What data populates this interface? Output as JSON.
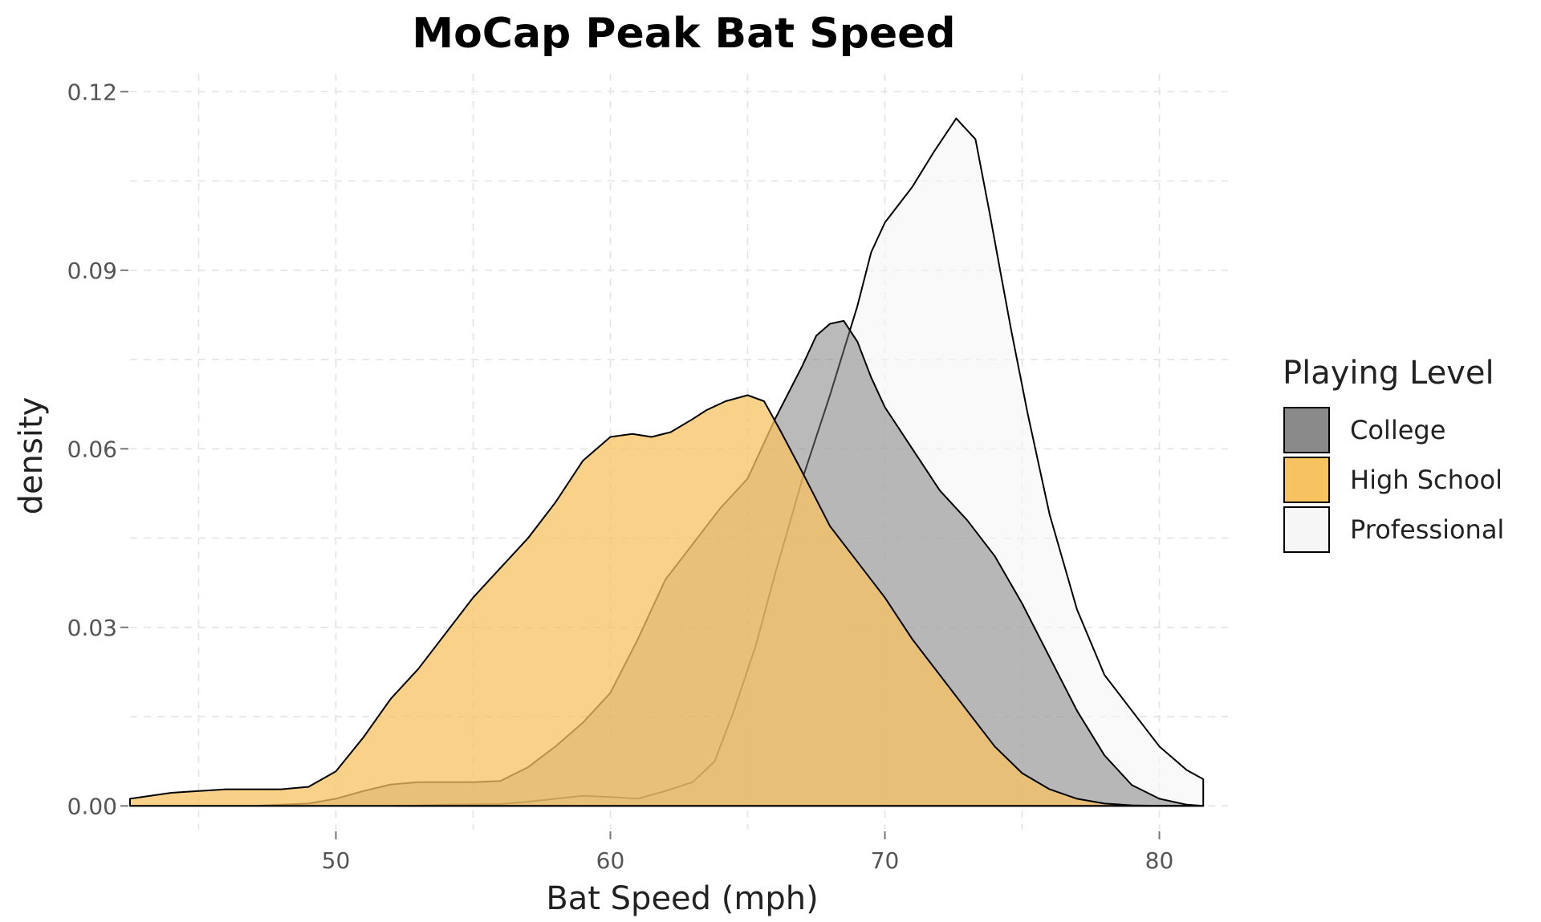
{
  "chart_data": {
    "type": "area",
    "subtype": "density",
    "title": "MoCap Peak Bat Speed",
    "xlabel": "Bat Speed (mph)",
    "ylabel": "density",
    "xlim": [
      42.5,
      82.5
    ],
    "ylim": [
      -0.004,
      0.123
    ],
    "xticks": [
      50,
      60,
      70,
      80
    ],
    "xtick_labels": [
      "50",
      "60",
      "70",
      "80"
    ],
    "yticks": [
      0.0,
      0.03,
      0.06,
      0.09,
      0.12
    ],
    "ytick_labels": [
      "0.00",
      "0.03",
      "0.06",
      "0.09",
      "0.12"
    ],
    "grid": true,
    "legend": {
      "title": "Playing Level",
      "placement": "right",
      "entries": [
        "College",
        "High School",
        "Professional"
      ]
    },
    "series": [
      {
        "name": "Professional",
        "color": "#f7f5f7",
        "opacity": 0.6,
        "x": [
          52.2,
          54,
          56,
          57,
          58,
          59,
          60,
          61,
          62,
          63,
          63.8,
          64.5,
          65.3,
          66,
          67,
          68,
          69,
          69.5,
          70,
          71,
          71.8,
          72.6,
          73.3,
          73.8,
          74.2,
          74.6,
          75.2,
          76,
          77,
          78,
          79,
          80,
          81,
          81.6
        ],
        "y": [
          0,
          0.0002,
          0.0003,
          0.0007,
          0.0012,
          0.0017,
          0.0015,
          0.0012,
          0.0025,
          0.004,
          0.0075,
          0.016,
          0.027,
          0.039,
          0.055,
          0.069,
          0.084,
          0.093,
          0.098,
          0.104,
          0.11,
          0.1155,
          0.112,
          0.1,
          0.09,
          0.08,
          0.066,
          0.049,
          0.033,
          0.022,
          0.016,
          0.01,
          0.006,
          0.0045
        ]
      },
      {
        "name": "College",
        "color": "#757575",
        "opacity": 0.5,
        "x": [
          42.5,
          47,
          49,
          50,
          51,
          52,
          53,
          54,
          55,
          56,
          57,
          58,
          59,
          60,
          61,
          62,
          63,
          64,
          65,
          66,
          67,
          67.5,
          68,
          68.5,
          69,
          69.5,
          70,
          71,
          72,
          73,
          74,
          75,
          76,
          77,
          78,
          79,
          80,
          81,
          81.6
        ],
        "y": [
          0,
          0,
          0.0004,
          0.0012,
          0.0025,
          0.0036,
          0.004,
          0.004,
          0.004,
          0.0042,
          0.0065,
          0.01,
          0.014,
          0.019,
          0.028,
          0.038,
          0.044,
          0.05,
          0.055,
          0.065,
          0.074,
          0.079,
          0.081,
          0.0815,
          0.078,
          0.072,
          0.067,
          0.06,
          0.053,
          0.048,
          0.042,
          0.034,
          0.025,
          0.016,
          0.0085,
          0.0035,
          0.0012,
          0.0002,
          0
        ]
      },
      {
        "name": "High School",
        "color": "#f7c260",
        "opacity": 0.75,
        "x": [
          42.5,
          44,
          45,
          46,
          47,
          48,
          49,
          50,
          51,
          52,
          53,
          54,
          55,
          56,
          57,
          58,
          59,
          60,
          60.8,
          61.5,
          62.2,
          63,
          63.5,
          64.2,
          65,
          65.6,
          66.2,
          67,
          68,
          69,
          70,
          71,
          72,
          73,
          74,
          75,
          76,
          77,
          78,
          79,
          80,
          81,
          81.6
        ],
        "y": [
          0.0012,
          0.0022,
          0.0025,
          0.0028,
          0.0028,
          0.0028,
          0.0032,
          0.0058,
          0.0115,
          0.018,
          0.023,
          0.029,
          0.035,
          0.04,
          0.045,
          0.051,
          0.058,
          0.062,
          0.0625,
          0.062,
          0.0628,
          0.065,
          0.0665,
          0.068,
          0.069,
          0.068,
          0.063,
          0.056,
          0.047,
          0.041,
          0.035,
          0.028,
          0.022,
          0.016,
          0.01,
          0.0055,
          0.0028,
          0.0012,
          0.0004,
          0.0001,
          0,
          0,
          0
        ]
      }
    ]
  }
}
